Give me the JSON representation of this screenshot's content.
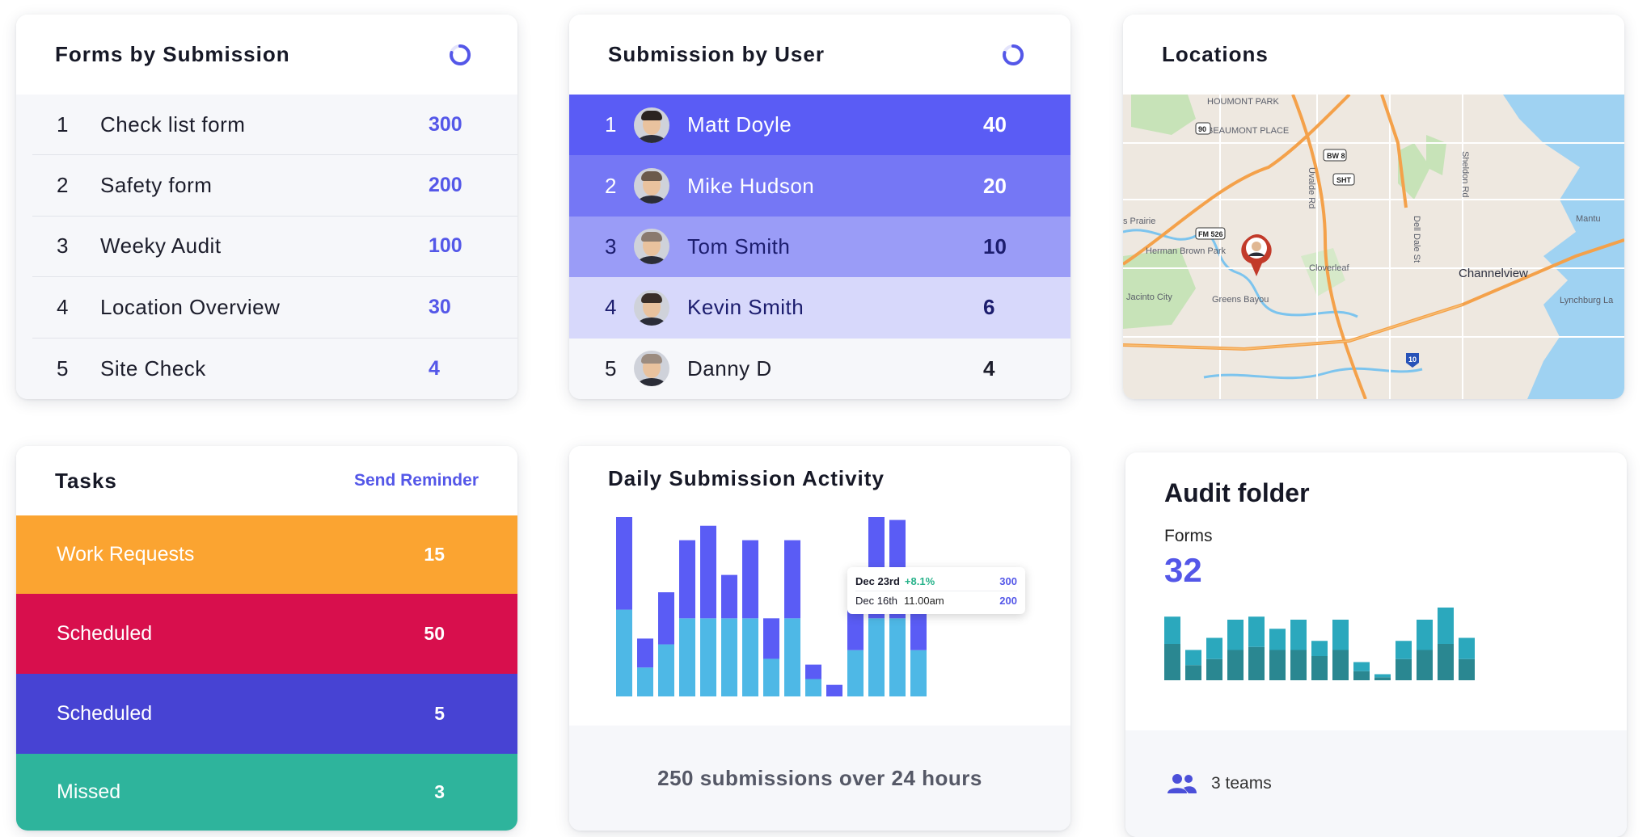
{
  "forms_by_submission": {
    "title": "Forms by Submission",
    "rows": [
      {
        "rank": "1",
        "label": "Check list form",
        "value": "300"
      },
      {
        "rank": "2",
        "label": "Safety form",
        "value": "200"
      },
      {
        "rank": "3",
        "label": "Weeky Audit",
        "value": "100"
      },
      {
        "rank": "4",
        "label": "Location Overview",
        "value": "30"
      },
      {
        "rank": "5",
        "label": "Site Check",
        "value": "4"
      }
    ]
  },
  "submission_by_user": {
    "title": "Submission by User",
    "rows": [
      {
        "rank": "1",
        "name": "Matt Doyle",
        "value": "40",
        "bg": "#5a5cf5",
        "fg": "#ffffff"
      },
      {
        "rank": "2",
        "name": "Mike Hudson",
        "value": "20",
        "bg": "#7577f5",
        "fg": "#ffffff"
      },
      {
        "rank": "3",
        "name": "Tom Smith",
        "value": "10",
        "bg": "#9a9cf7",
        "fg": "#1c1d6e"
      },
      {
        "rank": "4",
        "name": "Kevin Smith",
        "value": "6",
        "bg": "#d7d8fb",
        "fg": "#1c1d6e"
      },
      {
        "rank": "5",
        "name": "Danny D",
        "value": "4",
        "bg": "#f6f7fa",
        "fg": "#1c1d2b"
      }
    ]
  },
  "locations": {
    "title": "Locations",
    "map_labels": [
      "HOUMONT PARK",
      "BEAUMONT PLACE",
      "Uvalde Rd",
      "Sheldon Rd",
      "Dell Dale St",
      "s Prairie",
      "Herman Brown Park",
      "Cloverleaf",
      "Mantu",
      "Channelview",
      "Jacinto City",
      "Greens Bayou",
      "Lynchburg La",
      "BW 8",
      "SHT",
      "FM 526",
      "90",
      "10"
    ]
  },
  "tasks": {
    "title": "Tasks",
    "reminder": "Send Reminder",
    "rows": [
      {
        "label": "Work Requests",
        "value": "15",
        "color": "#fba431"
      },
      {
        "label": "Scheduled",
        "value": "50",
        "color": "#d80f4d"
      },
      {
        "label": "Scheduled",
        "value": "5",
        "color": "#4743d3"
      },
      {
        "label": "Missed",
        "value": "3",
        "color": "#2eb49c"
      }
    ]
  },
  "daily_activity": {
    "title": "Daily Submission Activity",
    "footer": "250 submissions over 24 hours",
    "tooltip": {
      "date1": "Dec 23rd",
      "change": "+8.1%",
      "value1": "300",
      "date2": "Dec 16th",
      "time": "11.00am",
      "value2": "200"
    },
    "colors": {
      "top": "#5a5cf5",
      "bottom": "#4eb8e6"
    }
  },
  "audit_folder": {
    "title": "Audit folder",
    "sub": "Forms",
    "count": "32",
    "teams": "3 teams",
    "colors": {
      "top": "#2ba8bd",
      "bottom": "#2a8791"
    }
  },
  "chart_data": [
    {
      "type": "bar",
      "title": "Daily Submission Activity",
      "stacked": true,
      "series": [
        {
          "values": [
            30,
            10,
            18,
            27,
            27,
            27,
            27,
            13,
            27,
            6,
            0,
            16,
            27,
            27,
            16
          ]
        },
        {
          "values": [
            32,
            10,
            18,
            27,
            32,
            15,
            27,
            14,
            27,
            5,
            4,
            16,
            35,
            34,
            16
          ]
        }
      ]
    },
    {
      "type": "bar",
      "title": "Audit folder",
      "stacked": true,
      "series": [
        {
          "values": [
            12,
            5,
            7,
            10,
            11,
            10,
            10,
            8,
            10,
            3,
            1,
            7,
            10,
            12,
            7
          ]
        },
        {
          "values": [
            9,
            5,
            7,
            10,
            10,
            7,
            10,
            5,
            10,
            3,
            1,
            6,
            10,
            12,
            7
          ]
        }
      ]
    }
  ]
}
